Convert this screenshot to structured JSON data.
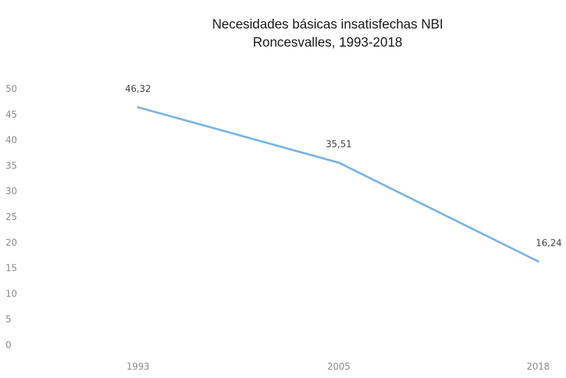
{
  "chart_data": {
    "type": "line",
    "title": "Necesidades básicas insatisfechas NBI",
    "subtitle": "Roncesvalles, 1993-2018",
    "categories": [
      "1993",
      "2005",
      "2018"
    ],
    "series": [
      {
        "values": [
          46.32,
          35.51,
          16.24
        ],
        "data_labels": [
          "46,32",
          "35,51",
          "16,24"
        ],
        "color": "#7cb5e4"
      }
    ],
    "y_ticks": [
      "0",
      "5",
      "10",
      "15",
      "20",
      "25",
      "30",
      "35",
      "40",
      "45",
      "50"
    ],
    "ylim": [
      0,
      50
    ],
    "grid": false,
    "legend": "none"
  }
}
